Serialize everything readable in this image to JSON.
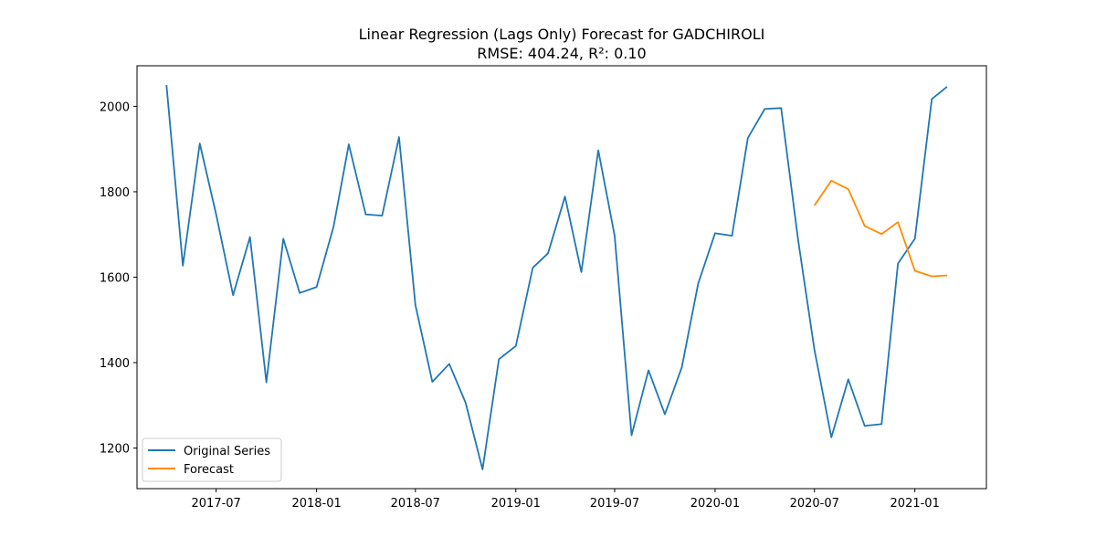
{
  "chart_data": {
    "type": "line",
    "title": "Linear Regression (Lags Only) Forecast for GADCHIROLI",
    "subtitle": "RMSE: 404.24, R²: 0.10",
    "xlabel": "",
    "ylabel": "",
    "x_axis_type": "date",
    "xlim": [
      "2017-02-06",
      "2021-05-12"
    ],
    "ylim": [
      1105,
      2095
    ],
    "x_ticks": [
      {
        "date": "2017-07-01",
        "label": "2017-07"
      },
      {
        "date": "2018-01-01",
        "label": "2018-01"
      },
      {
        "date": "2018-07-01",
        "label": "2018-07"
      },
      {
        "date": "2019-01-01",
        "label": "2019-01"
      },
      {
        "date": "2019-07-01",
        "label": "2019-07"
      },
      {
        "date": "2020-01-01",
        "label": "2020-01"
      },
      {
        "date": "2020-07-01",
        "label": "2020-07"
      },
      {
        "date": "2021-01-01",
        "label": "2021-01"
      }
    ],
    "y_ticks": [
      1200,
      1400,
      1600,
      1800,
      2000
    ],
    "grid": false,
    "legend_position": "lower-left",
    "series": [
      {
        "name": "Original Series",
        "color": "#1f77b4",
        "points": [
          [
            "2017-04-01",
            2050
          ],
          [
            "2017-05-01",
            1627
          ],
          [
            "2017-06-01",
            1913
          ],
          [
            "2017-07-01",
            1747
          ],
          [
            "2017-08-01",
            1558
          ],
          [
            "2017-09-01",
            1694
          ],
          [
            "2017-10-01",
            1354
          ],
          [
            "2017-11-01",
            1690
          ],
          [
            "2017-12-01",
            1563
          ],
          [
            "2018-01-01",
            1577
          ],
          [
            "2018-02-01",
            1718
          ],
          [
            "2018-03-01",
            1911
          ],
          [
            "2018-04-01",
            1747
          ],
          [
            "2018-05-01",
            1744
          ],
          [
            "2018-06-01",
            1928
          ],
          [
            "2018-07-01",
            1535
          ],
          [
            "2018-08-01",
            1355
          ],
          [
            "2018-09-01",
            1397
          ],
          [
            "2018-10-01",
            1306
          ],
          [
            "2018-11-01",
            1150
          ],
          [
            "2018-12-01",
            1408
          ],
          [
            "2019-01-01",
            1439
          ],
          [
            "2019-02-01",
            1622
          ],
          [
            "2019-03-01",
            1656
          ],
          [
            "2019-04-01",
            1789
          ],
          [
            "2019-05-01",
            1612
          ],
          [
            "2019-06-01",
            1897
          ],
          [
            "2019-07-01",
            1697
          ],
          [
            "2019-08-01",
            1230
          ],
          [
            "2019-09-01",
            1382
          ],
          [
            "2019-10-01",
            1279
          ],
          [
            "2019-11-01",
            1389
          ],
          [
            "2019-12-01",
            1585
          ],
          [
            "2020-01-01",
            1703
          ],
          [
            "2020-02-01",
            1697
          ],
          [
            "2020-03-01",
            1926
          ],
          [
            "2020-04-01",
            1994
          ],
          [
            "2020-05-01",
            1996
          ],
          [
            "2020-06-01",
            1688
          ],
          [
            "2020-07-01",
            1430
          ],
          [
            "2020-08-01",
            1225
          ],
          [
            "2020-09-01",
            1361
          ],
          [
            "2020-10-01",
            1252
          ],
          [
            "2020-11-01",
            1256
          ],
          [
            "2020-12-01",
            1632
          ],
          [
            "2021-01-01",
            1690
          ],
          [
            "2021-02-01",
            2017
          ],
          [
            "2021-03-01",
            2046
          ]
        ]
      },
      {
        "name": "Forecast",
        "color": "#ff8c00",
        "points": [
          [
            "2020-07-01",
            1768
          ],
          [
            "2020-08-01",
            1826
          ],
          [
            "2020-09-01",
            1806
          ],
          [
            "2020-10-01",
            1720
          ],
          [
            "2020-11-01",
            1701
          ],
          [
            "2020-12-01",
            1729
          ],
          [
            "2021-01-01",
            1615
          ],
          [
            "2021-02-01",
            1602
          ],
          [
            "2021-03-01",
            1604
          ]
        ]
      }
    ]
  }
}
